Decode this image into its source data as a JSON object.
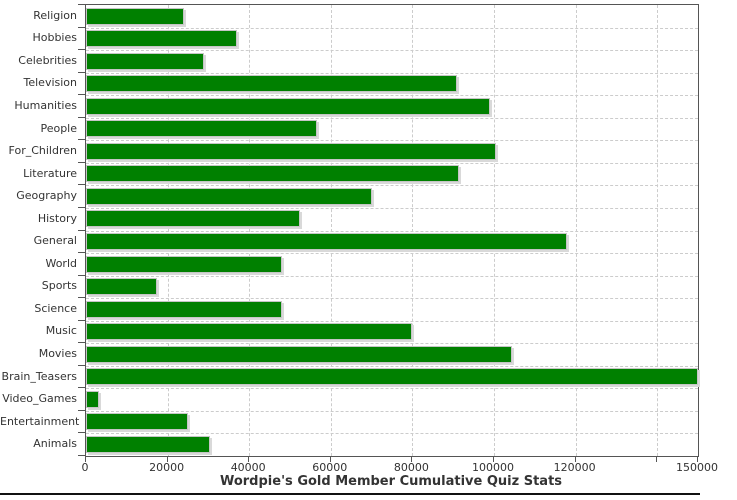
{
  "chart_data": {
    "type": "bar",
    "orientation": "horizontal",
    "title": "Wordpie's Gold Member Cumulative Quiz Stats",
    "categories": [
      "Religion",
      "Hobbies",
      "Celebrities",
      "Television",
      "Humanities",
      "People",
      "For_Children",
      "Literature",
      "Geography",
      "History",
      "General",
      "World",
      "Sports",
      "Science",
      "Music",
      "Movies",
      "Brain_Teasers",
      "Video_Games",
      "Entertainment",
      "Animals"
    ],
    "values": [
      24000,
      37000,
      29000,
      91000,
      99000,
      56500,
      100500,
      91500,
      70000,
      52500,
      118000,
      48000,
      17500,
      48000,
      80000,
      104500,
      150000,
      3300,
      25000,
      30500
    ],
    "xlabel": "",
    "ylabel": "",
    "x_axis": {
      "min": 0,
      "max": 150000,
      "tick_values": [
        0,
        20000,
        40000,
        60000,
        80000,
        100000,
        120000,
        140000,
        150000
      ],
      "tick_labels": [
        "0",
        "20000",
        "40000",
        "60000",
        "80000",
        "100000",
        "120000",
        "",
        "150000"
      ]
    },
    "grid": "dashed",
    "legend": "none",
    "colors": {
      "bar": "#008000",
      "bar_outline": "#c6c6c6",
      "grid": "#cccccc",
      "axis": "#555555",
      "text": "#333333"
    }
  }
}
